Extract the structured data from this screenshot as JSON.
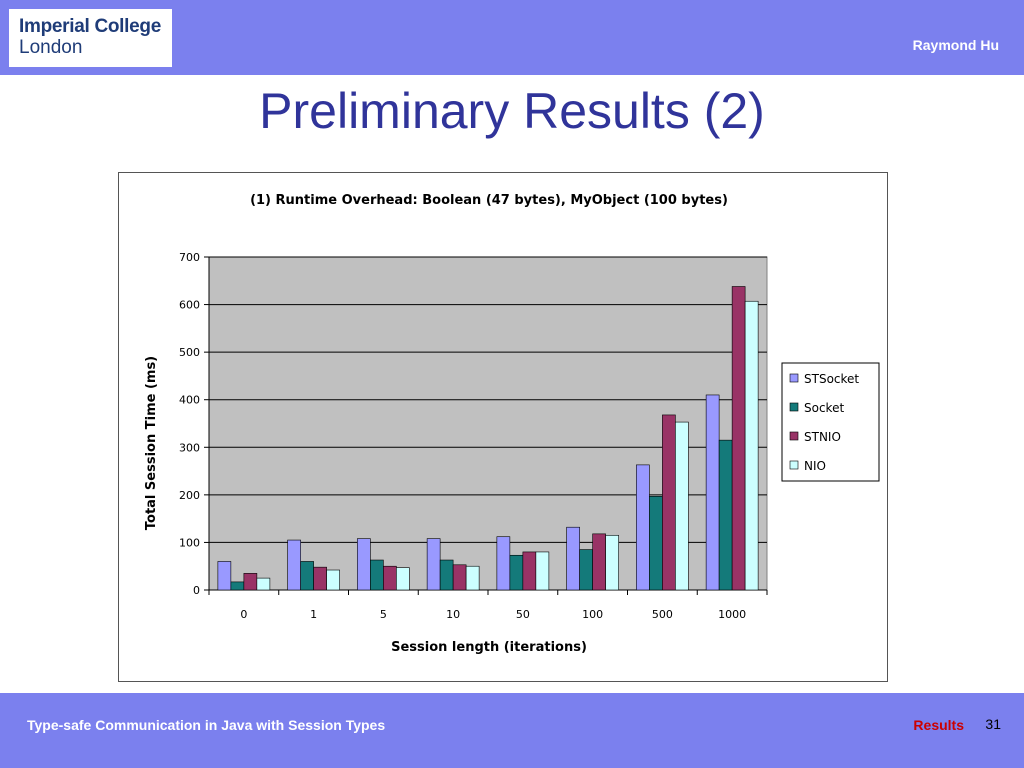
{
  "header": {
    "logo_line1": "Imperial College",
    "logo_line2": "London",
    "author": "Raymond Hu"
  },
  "slide": {
    "title": "Preliminary Results (2)"
  },
  "footer": {
    "text": "Type-safe Communication in Java with Session Types",
    "section": "Results",
    "page": "31"
  },
  "colors": {
    "accent": "#7b80ee",
    "title": "#30349a",
    "plot_bg": "#c0c0c0"
  },
  "chart_data": {
    "type": "bar",
    "title": "(1) Runtime Overhead: Boolean (47 bytes), MyObject (100 bytes)",
    "xlabel": "Session length (iterations)",
    "ylabel": "Total Session Time (ms)",
    "ylim": [
      0,
      700
    ],
    "yticks": [
      0,
      100,
      200,
      300,
      400,
      500,
      600,
      700
    ],
    "grid": true,
    "legend_position": "right",
    "categories": [
      "0",
      "1",
      "5",
      "10",
      "50",
      "100",
      "500",
      "1000"
    ],
    "series": [
      {
        "name": "STSocket",
        "color": "#9999ff",
        "values": [
          60,
          105,
          108,
          108,
          112,
          132,
          263,
          410
        ]
      },
      {
        "name": "Socket",
        "color": "#147a7a",
        "values": [
          17,
          60,
          63,
          63,
          73,
          85,
          197,
          315
        ]
      },
      {
        "name": "STNIO",
        "color": "#993366",
        "values": [
          35,
          48,
          50,
          53,
          80,
          118,
          368,
          638
        ]
      },
      {
        "name": "NIO",
        "color": "#ccffff",
        "values": [
          25,
          42,
          47,
          50,
          80,
          115,
          353,
          607
        ]
      }
    ]
  }
}
